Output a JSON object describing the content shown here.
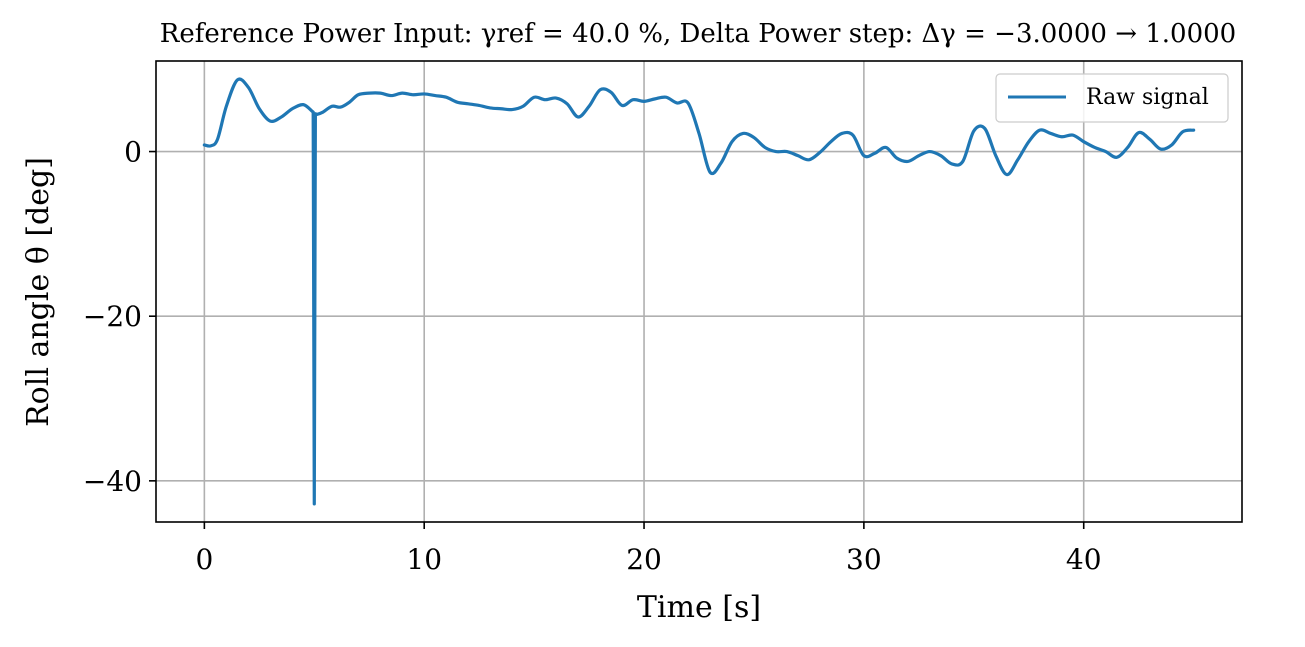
{
  "chart_data": {
    "type": "line",
    "title": "Reference Power Input: γref = 40.0 %, Delta Power step: Δγ = −3.0000 → 1.0000",
    "xlabel": "Time [s]",
    "ylabel": "Roll angle θ [deg]",
    "xlim": [
      -2.2,
      47.2
    ],
    "ylim": [
      -45,
      11
    ],
    "xticks": [
      0,
      10,
      20,
      30,
      40
    ],
    "xtick_labels": [
      "0",
      "10",
      "20",
      "30",
      "40"
    ],
    "yticks": [
      0,
      -20,
      -40
    ],
    "ytick_labels": [
      "0",
      "−20",
      "−40"
    ],
    "grid": true,
    "legend_placement": "top-right",
    "series": [
      {
        "name": "Raw signal",
        "color": "#1f77b4",
        "x": [
          0,
          0.3,
          0.6,
          1.0,
          1.5,
          2.0,
          2.5,
          3.0,
          3.5,
          4.0,
          4.5,
          4.9,
          4.95,
          5.0,
          5.05,
          5.1,
          5.4,
          5.8,
          6.2,
          6.6,
          7.0,
          7.5,
          8.0,
          8.5,
          9.0,
          9.5,
          10.0,
          10.5,
          11.0,
          11.5,
          12.0,
          12.5,
          13.0,
          13.5,
          14.0,
          14.5,
          15.0,
          15.5,
          16.0,
          16.5,
          17.0,
          17.5,
          18.0,
          18.5,
          19.0,
          19.5,
          20.0,
          20.5,
          21.0,
          21.5,
          22.0,
          22.5,
          23.0,
          23.5,
          24.0,
          24.5,
          25.0,
          25.5,
          26.0,
          26.5,
          27.0,
          27.5,
          28.0,
          28.5,
          29.0,
          29.5,
          30.0,
          30.5,
          31.0,
          31.5,
          32.0,
          32.5,
          33.0,
          33.5,
          34.0,
          34.5,
          35.0,
          35.5,
          36.0,
          36.5,
          37.0,
          37.5,
          38.0,
          38.5,
          39.0,
          39.5,
          40.0,
          40.5,
          41.0,
          41.5,
          42.0,
          42.5,
          43.0,
          43.5,
          44.0,
          44.5,
          45.0
        ],
        "values": [
          0.8,
          0.7,
          1.5,
          5.5,
          8.7,
          7.8,
          5.2,
          3.7,
          4.2,
          5.2,
          5.7,
          4.9,
          4.8,
          -42.8,
          4.6,
          4.5,
          4.8,
          5.5,
          5.4,
          6.0,
          6.9,
          7.1,
          7.1,
          6.8,
          7.1,
          6.9,
          7.0,
          6.8,
          6.6,
          6.0,
          5.8,
          5.6,
          5.3,
          5.2,
          5.1,
          5.5,
          6.6,
          6.3,
          6.5,
          5.8,
          4.2,
          5.5,
          7.5,
          7.2,
          5.6,
          6.3,
          6.1,
          6.4,
          6.6,
          5.9,
          5.9,
          2.2,
          -2.5,
          -1.4,
          1.2,
          2.2,
          1.7,
          0.5,
          0.0,
          0.0,
          -0.5,
          -1.0,
          -0.1,
          1.2,
          2.2,
          2.0,
          -0.5,
          -0.2,
          0.5,
          -0.8,
          -1.2,
          -0.5,
          0.0,
          -0.5,
          -1.5,
          -1.2,
          2.5,
          2.8,
          -0.5,
          -2.8,
          -1.0,
          1.2,
          2.6,
          2.2,
          1.8,
          2.0,
          1.2,
          0.5,
          0.0,
          -0.7,
          0.5,
          2.3,
          1.5,
          0.3,
          0.8,
          2.4,
          2.6
        ]
      }
    ]
  }
}
